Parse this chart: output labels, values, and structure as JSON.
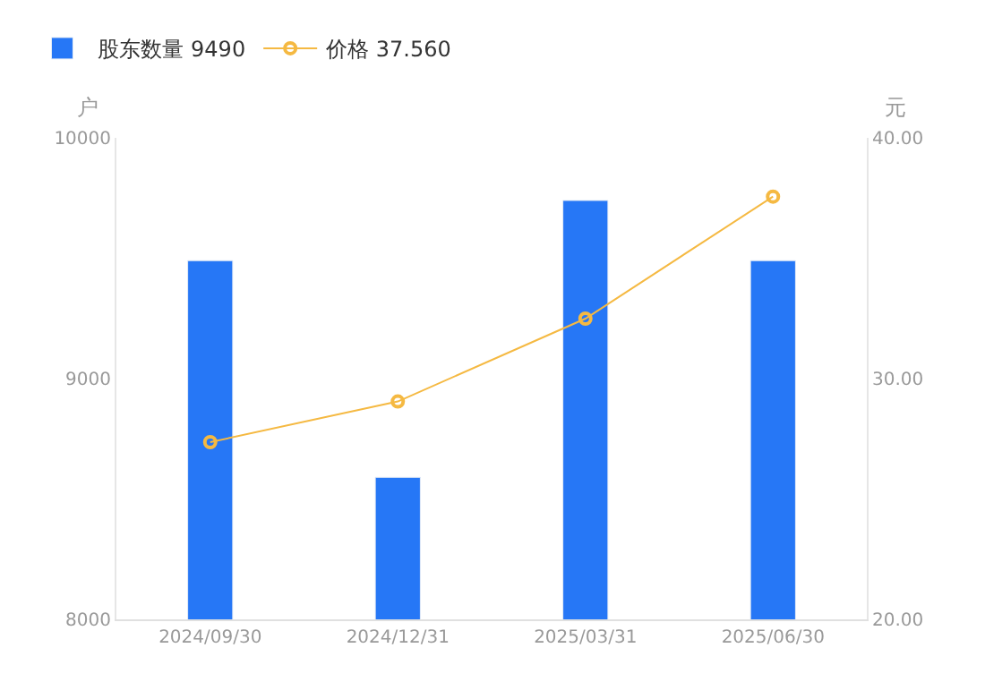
{
  "chart_data": {
    "type": "bar",
    "categories": [
      "2024/09/30",
      "2024/12/31",
      "2025/03/31",
      "2025/06/30"
    ],
    "series": [
      {
        "name": "股东数量 9490",
        "color": "#2677f6",
        "values": [
          9490,
          8590,
          9740,
          9490
        ]
      },
      {
        "name": "价格 37.560",
        "color": "#f5b942",
        "type": "line",
        "axis": "y2",
        "marker": "circle",
        "values": [
          27.36,
          29.05,
          32.49,
          37.56
        ]
      }
    ],
    "ylabel": "户",
    "y2label": "元",
    "ylim": [
      8000,
      10000
    ],
    "yticks": [
      8000,
      9000,
      10000
    ],
    "y2lim": [
      20,
      40
    ],
    "y2ticks": [
      {
        "value": 20,
        "label": "20.00"
      },
      {
        "value": 30,
        "label": "30.00"
      },
      {
        "value": 40,
        "label": "40.00"
      }
    ],
    "grid": false,
    "legend": "top left"
  }
}
